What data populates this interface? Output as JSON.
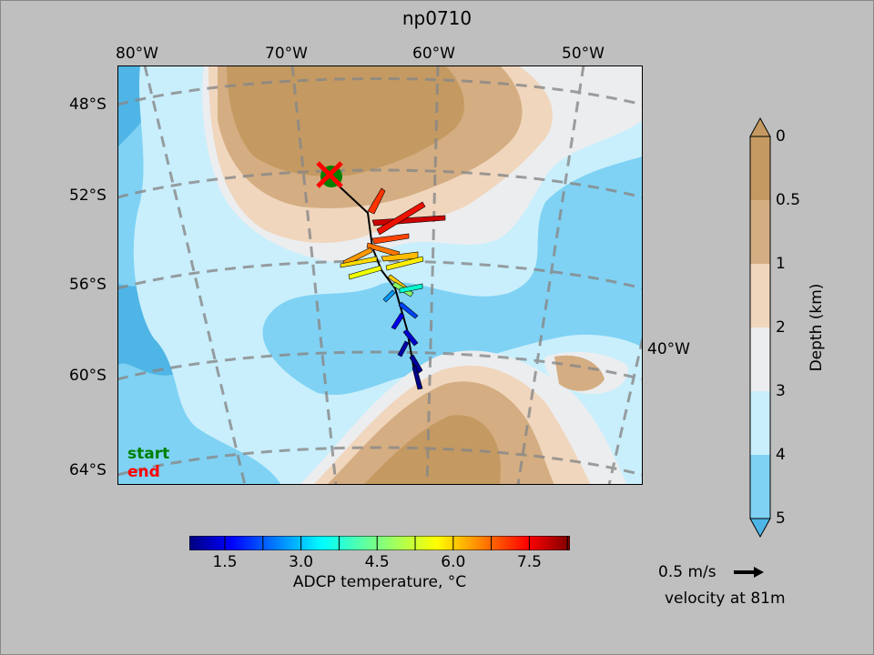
{
  "title": "np0710",
  "map": {
    "lon_labels": [
      "80°W",
      "70°W",
      "60°W",
      "50°W"
    ],
    "lat_labels": [
      "48°S",
      "52°S",
      "56°S",
      "60°S",
      "64°S"
    ],
    "extra_lon_label": "40°W",
    "legend": {
      "start": "start",
      "end": "end"
    },
    "colors": {
      "land_dark": "#c49a62",
      "land_mid": "#d4ad82",
      "land_light": "#f0d6bd",
      "shelf": "#ecedef",
      "ocean_3_4": "#c9effc",
      "ocean_4_5": "#7fd2f4",
      "ocean_deep": "#4fb5e6",
      "start_marker": "#008000",
      "end_marker": "#ff0000"
    }
  },
  "chart_data": {
    "type": "map",
    "title": "np0710",
    "cruise_track": [
      {
        "lon": -67.5,
        "lat": -52.6
      },
      {
        "lon": -64.6,
        "lat": -53.8
      },
      {
        "lon": -64.2,
        "lat": -54.7
      },
      {
        "lon": -63.8,
        "lat": -55.4
      },
      {
        "lon": -63.0,
        "lat": -56.2
      },
      {
        "lon": -62.6,
        "lat": -57.3
      },
      {
        "lon": -62.0,
        "lat": -58.6
      },
      {
        "lon": -61.3,
        "lat": -59.8
      }
    ],
    "start": {
      "lon": -67.8,
      "lat": -52.4
    },
    "end": {
      "lon": -67.8,
      "lat": -52.4
    },
    "temperature_colorbar": {
      "label": "ADCP temperature, °C",
      "ticks": [
        1.5,
        3.0,
        4.5,
        6.0,
        7.5
      ],
      "tick_labels": [
        "1.5",
        "3.0",
        "4.5",
        "6.0",
        "7.5"
      ],
      "range": [
        0.8,
        8.3
      ],
      "colormap": "jet"
    },
    "depth_colorbar": {
      "label": "Depth (km)",
      "ticks": [
        "0",
        "0.5",
        "1",
        "2",
        "3",
        "4",
        "5"
      ],
      "colors": [
        "#c49a62",
        "#d4ad82",
        "#f0d6bd",
        "#ecedef",
        "#c9effc",
        "#7fd2f4",
        "#4fb5e6"
      ]
    },
    "quiver_key": {
      "speed": "0.5 m/s",
      "depth_label": "velocity at 81m"
    }
  },
  "quiver_key_text": "0.5 m/s",
  "velocity_text": "velocity at 81m"
}
